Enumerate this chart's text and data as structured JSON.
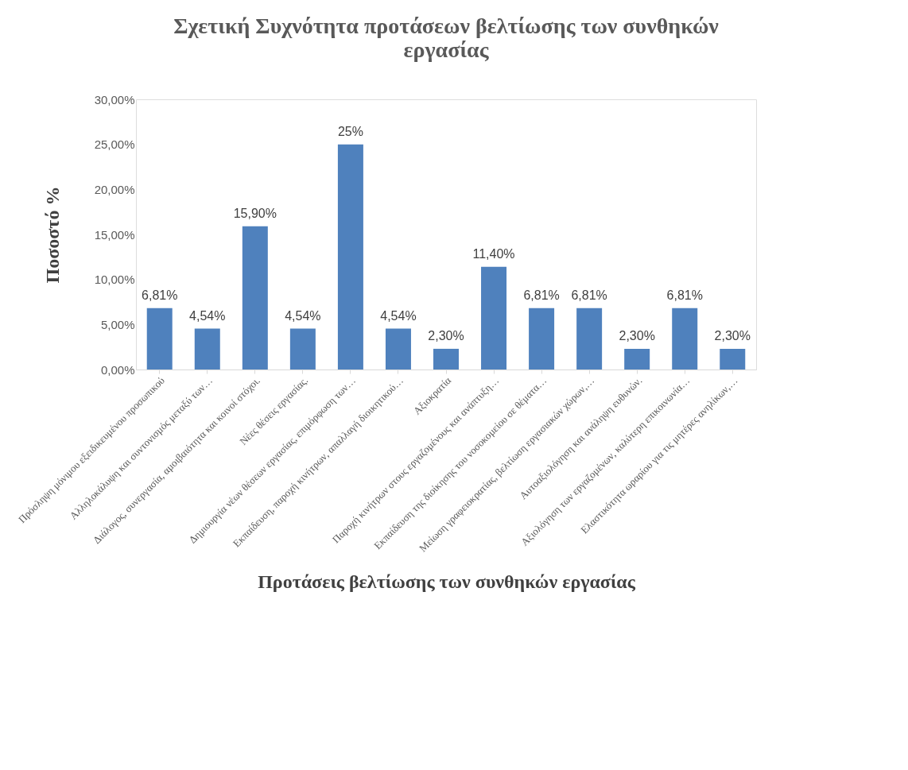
{
  "chart_data": {
    "type": "bar",
    "title": "Σχετική Συχνότητα προτάσεων βελτίωσης των συνθηκών εργασίας",
    "xlabel": "Προτάσεις βελτίωσης των συνθηκών εργασίας",
    "ylabel": "Ποσοστό %",
    "categories": [
      "Πρόσληψη μόνιμου εξειδικευμένου προσωπικού",
      "Αλληλοκάλυψη και συντονισμός μεταξύ των…",
      "Διάλογος, συνεργασία, αμοιβαιότητα και κοινοί στόχοι.",
      "Νέες θέσεις εργασίας.",
      "Δημιουργία νέων θέσεων εργασίας, επιμόρφωση των…",
      "Εκπαίδευση, παροχή κινήτρων, απαλλαγή διοικητικού…",
      "Αξιοκρατία",
      "Παροχή κινήτρων στους εργαζομένους και ανάπτυξη…",
      "Εκπαίδευση της διοίκησης του νοσοκομείου σε θέματα…",
      "Μείωση γραφειοκρατίας, βελτίωση εργασιακών χώρων,…",
      "Αυτοαξιολόγηση και ανάληψη ευθυνών.",
      "Αξιολόγηση των εργαζομένων, καλύτερη επικοινωνία…",
      "Ελαστικότητα ωραρίου για τις μητέρες ανηλίκων,…"
    ],
    "values": [
      6.81,
      4.54,
      15.9,
      4.54,
      25,
      4.54,
      2.3,
      11.4,
      6.81,
      6.81,
      2.3,
      6.81,
      2.3
    ],
    "value_labels": [
      "6,81%",
      "4,54%",
      "15,90%",
      "4,54%",
      "25%",
      "4,54%",
      "2,30%",
      "11,40%",
      "6,81%",
      "6,81%",
      "2,30%",
      "6,81%",
      "2,30%"
    ],
    "color": "#4f81bd",
    "ylim": [
      0,
      30
    ],
    "yticks": [
      {
        "value": 0,
        "label": "0,00%"
      },
      {
        "value": 5,
        "label": "5,00%"
      },
      {
        "value": 10,
        "label": "10,00%"
      },
      {
        "value": 15,
        "label": "15,00%"
      },
      {
        "value": 20,
        "label": "20,00%"
      },
      {
        "value": 25,
        "label": "25,00%"
      },
      {
        "value": 30,
        "label": "30,00%"
      }
    ],
    "grid": false
  }
}
